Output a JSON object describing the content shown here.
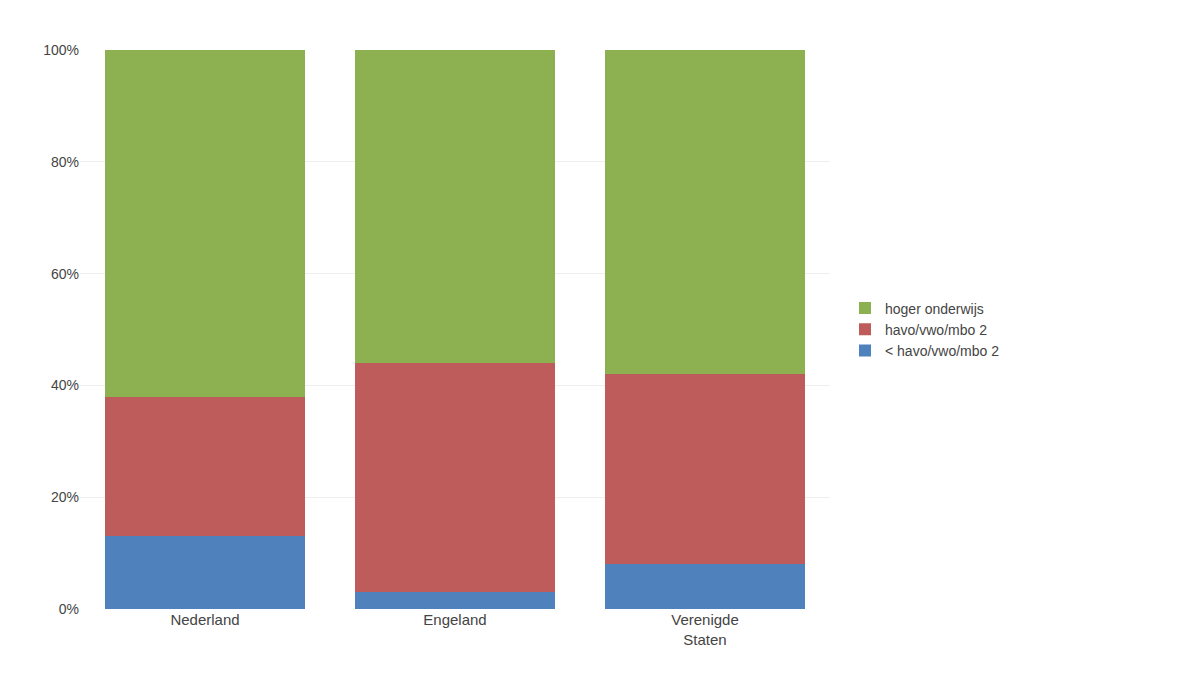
{
  "chart_data": {
    "type": "bar",
    "stacked": true,
    "categories": [
      "Nederland",
      "Engeland",
      "Verenigde\nStaten"
    ],
    "series": [
      {
        "name": "< havo/vwo/mbo 2",
        "color": "#4f81bd",
        "values": [
          13,
          3,
          8
        ]
      },
      {
        "name": "havo/vwo/mbo 2",
        "color": "#be5c5c",
        "values": [
          25,
          41,
          34
        ]
      },
      {
        "name": "hoger onderwijs",
        "color": "#8db050",
        "values": [
          62,
          56,
          58
        ]
      }
    ],
    "ylim": [
      0,
      100
    ],
    "yticks": [
      {
        "value": 0,
        "label": "0%"
      },
      {
        "value": 20,
        "label": "20%"
      },
      {
        "value": 40,
        "label": "40%"
      },
      {
        "value": 60,
        "label": "60%"
      },
      {
        "value": 80,
        "label": "80%"
      },
      {
        "value": 100,
        "label": "100%"
      }
    ],
    "grid": true,
    "legend": "right"
  }
}
